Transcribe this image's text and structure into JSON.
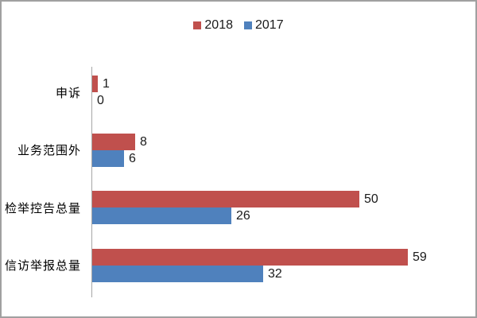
{
  "chart_data": {
    "type": "bar",
    "orientation": "horizontal",
    "title": "",
    "categories": [
      "申诉",
      "业务范围外",
      "检举控告总量",
      "信访举报总量"
    ],
    "series": [
      {
        "name": "2018",
        "color": "#c0504d",
        "values": [
          1,
          8,
          50,
          59
        ]
      },
      {
        "name": "2017",
        "color": "#4f81bd",
        "values": [
          0,
          6,
          26,
          32
        ]
      }
    ],
    "value_labels": true,
    "legend_position": "top",
    "grid": false,
    "xlabel": "",
    "ylabel": "",
    "xlim": [
      0,
      65
    ],
    "axis_color": "#a6a6a6",
    "background_color": "#ffffff",
    "border_color": "#a0a0a0"
  }
}
